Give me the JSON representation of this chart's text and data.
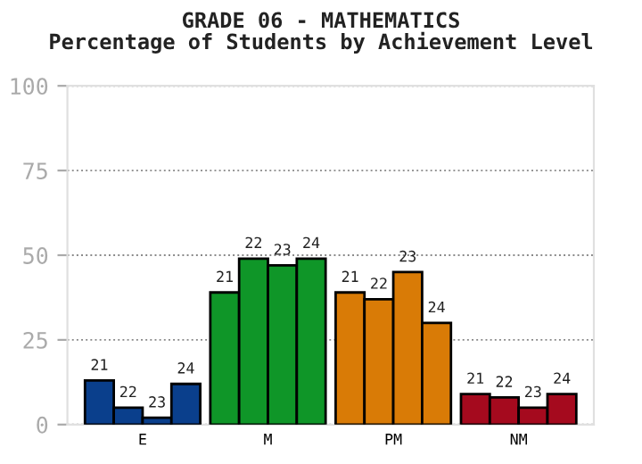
{
  "chart_data": {
    "type": "bar",
    "title": "GRADE 06 - MATHEMATICS\nPercentage of Students by Achievement Level",
    "categories": [
      "E",
      "M",
      "PM",
      "NM"
    ],
    "series": [
      {
        "name": "21",
        "colors": [
          "#0a3f8c",
          "#0f9628",
          "#d97b06",
          "#a50a1e"
        ],
        "values": [
          13,
          39,
          39,
          9
        ]
      },
      {
        "name": "22",
        "colors": [
          "#0a3f8c",
          "#0f9628",
          "#d97b06",
          "#a50a1e"
        ],
        "values": [
          5,
          49,
          37,
          8
        ]
      },
      {
        "name": "23",
        "colors": [
          "#0a3f8c",
          "#0f9628",
          "#d97b06",
          "#a50a1e"
        ],
        "values": [
          2,
          47,
          45,
          5
        ]
      },
      {
        "name": "24",
        "colors": [
          "#0a3f8c",
          "#0f9628",
          "#d97b06",
          "#a50a1e"
        ],
        "values": [
          12,
          49,
          30,
          9
        ]
      }
    ],
    "ylim": [
      0,
      100
    ],
    "yticks": [
      0,
      25,
      50,
      75,
      100
    ],
    "grid": "y",
    "legend": false
  }
}
